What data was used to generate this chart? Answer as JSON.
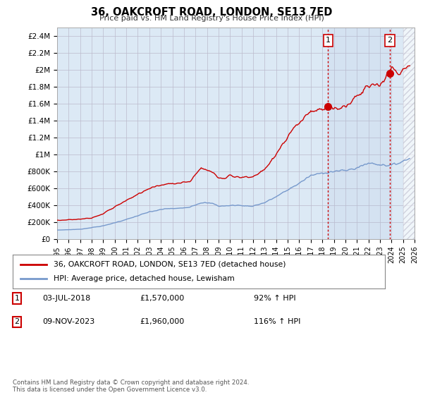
{
  "title": "36, OAKCROFT ROAD, LONDON, SE13 7ED",
  "subtitle": "Price paid vs. HM Land Registry's House Price Index (HPI)",
  "background_color": "#ffffff",
  "plot_bg_color": "#dce9f5",
  "grid_color": "#bbbbcc",
  "red_line_color": "#cc0000",
  "blue_line_color": "#7799cc",
  "sale1_x": 2018.5,
  "sale1_y": 1570000,
  "sale2_x": 2023.85,
  "sale2_y": 1960000,
  "legend_line1": "36, OAKCROFT ROAD, LONDON, SE13 7ED (detached house)",
  "legend_line2": "HPI: Average price, detached house, Lewisham",
  "sale1_date": "03-JUL-2018",
  "sale1_price": "£1,570,000",
  "sale1_hpi": "92% ↑ HPI",
  "sale2_date": "09-NOV-2023",
  "sale2_price": "£1,960,000",
  "sale2_hpi": "116% ↑ HPI",
  "footnote": "Contains HM Land Registry data © Crown copyright and database right 2024.\nThis data is licensed under the Open Government Licence v3.0.",
  "xmin": 1995,
  "xmax": 2026,
  "ylim": [
    0,
    2500000
  ],
  "yticks": [
    0,
    200000,
    400000,
    600000,
    800000,
    1000000,
    1200000,
    1400000,
    1600000,
    1800000,
    2000000,
    2200000,
    2400000
  ],
  "ytick_labels": [
    "£0",
    "£200K",
    "£400K",
    "£600K",
    "£800K",
    "£1M",
    "£1.2M",
    "£1.4M",
    "£1.6M",
    "£1.8M",
    "£2M",
    "£2.2M",
    "£2.4M"
  ],
  "xticks": [
    1995,
    1996,
    1997,
    1998,
    1999,
    2000,
    2001,
    2002,
    2003,
    2004,
    2005,
    2006,
    2007,
    2008,
    2009,
    2010,
    2011,
    2012,
    2013,
    2014,
    2015,
    2016,
    2017,
    2018,
    2019,
    2020,
    2021,
    2022,
    2023,
    2024,
    2025,
    2026
  ]
}
